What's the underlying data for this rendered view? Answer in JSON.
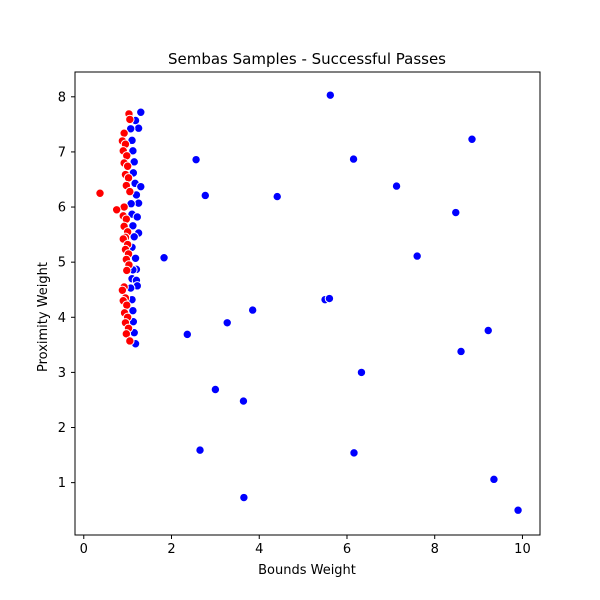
{
  "chart_data": {
    "type": "scatter",
    "title": "Sembas Samples - Successful Passes",
    "xlabel": "Bounds Weight",
    "ylabel": "Proximity Weight",
    "xlim": [
      -0.2,
      10.4
    ],
    "ylim": [
      0.05,
      8.45
    ],
    "xticks": [
      0,
      2,
      4,
      6,
      8,
      10
    ],
    "yticks": [
      1,
      2,
      3,
      4,
      5,
      6,
      7,
      8
    ],
    "grid": false,
    "legend": "none",
    "marker_edge_color": "#ffffff",
    "series": [
      {
        "color": "#0000ff",
        "points": [
          [
            1.3,
            7.72
          ],
          [
            1.18,
            7.57
          ],
          [
            1.25,
            7.43
          ],
          [
            1.07,
            7.42
          ],
          [
            1.1,
            7.21
          ],
          [
            1.12,
            7.02
          ],
          [
            1.15,
            6.82
          ],
          [
            1.13,
            6.62
          ],
          [
            1.17,
            6.43
          ],
          [
            1.3,
            6.37
          ],
          [
            1.2,
            6.22
          ],
          [
            1.25,
            6.07
          ],
          [
            1.08,
            6.06
          ],
          [
            1.1,
            5.87
          ],
          [
            1.22,
            5.82
          ],
          [
            1.12,
            5.66
          ],
          [
            1.25,
            5.53
          ],
          [
            1.15,
            5.46
          ],
          [
            1.1,
            5.27
          ],
          [
            1.18,
            5.07
          ],
          [
            1.2,
            4.87
          ],
          [
            1.12,
            4.86
          ],
          [
            1.1,
            4.7
          ],
          [
            1.2,
            4.67
          ],
          [
            1.22,
            4.57
          ],
          [
            1.07,
            4.53
          ],
          [
            1.1,
            4.32
          ],
          [
            1.12,
            4.12
          ],
          [
            1.13,
            3.92
          ],
          [
            1.15,
            3.72
          ],
          [
            1.18,
            3.52
          ],
          [
            5.62,
            8.03
          ],
          [
            8.85,
            7.23
          ],
          [
            2.56,
            6.86
          ],
          [
            6.15,
            6.87
          ],
          [
            7.13,
            6.38
          ],
          [
            2.77,
            6.21
          ],
          [
            4.41,
            6.19
          ],
          [
            8.48,
            5.9
          ],
          [
            1.83,
            5.08
          ],
          [
            7.6,
            5.11
          ],
          [
            5.5,
            4.32
          ],
          [
            5.6,
            4.34
          ],
          [
            3.85,
            4.13
          ],
          [
            3.27,
            3.9
          ],
          [
            9.22,
            3.76
          ],
          [
            2.36,
            3.69
          ],
          [
            8.6,
            3.38
          ],
          [
            6.33,
            3.0
          ],
          [
            3.0,
            2.69
          ],
          [
            3.64,
            2.48
          ],
          [
            2.65,
            1.59
          ],
          [
            6.16,
            1.54
          ],
          [
            9.35,
            1.06
          ],
          [
            3.65,
            0.73
          ],
          [
            9.9,
            0.5
          ]
        ]
      },
      {
        "color": "#ff0000",
        "points": [
          [
            1.03,
            7.69
          ],
          [
            1.05,
            7.59
          ],
          [
            0.92,
            7.34
          ],
          [
            0.88,
            7.2
          ],
          [
            0.95,
            7.14
          ],
          [
            0.9,
            7.02
          ],
          [
            0.98,
            6.93
          ],
          [
            0.92,
            6.8
          ],
          [
            1.0,
            6.74
          ],
          [
            0.95,
            6.59
          ],
          [
            1.02,
            6.53
          ],
          [
            0.97,
            6.39
          ],
          [
            1.05,
            6.28
          ],
          [
            0.37,
            6.25
          ],
          [
            0.92,
            6.0
          ],
          [
            0.75,
            5.95
          ],
          [
            0.9,
            5.84
          ],
          [
            0.97,
            5.78
          ],
          [
            0.92,
            5.65
          ],
          [
            1.0,
            5.55
          ],
          [
            0.95,
            5.45
          ],
          [
            0.9,
            5.42
          ],
          [
            1.0,
            5.32
          ],
          [
            0.95,
            5.23
          ],
          [
            1.02,
            5.15
          ],
          [
            0.97,
            5.05
          ],
          [
            1.03,
            4.95
          ],
          [
            0.98,
            4.85
          ],
          [
            0.92,
            4.55
          ],
          [
            0.88,
            4.49
          ],
          [
            0.95,
            4.35
          ],
          [
            0.9,
            4.3
          ],
          [
            0.98,
            4.22
          ],
          [
            0.93,
            4.08
          ],
          [
            1.0,
            4.0
          ],
          [
            0.95,
            3.9
          ],
          [
            1.02,
            3.8
          ],
          [
            0.97,
            3.7
          ],
          [
            1.05,
            3.57
          ]
        ]
      }
    ]
  }
}
